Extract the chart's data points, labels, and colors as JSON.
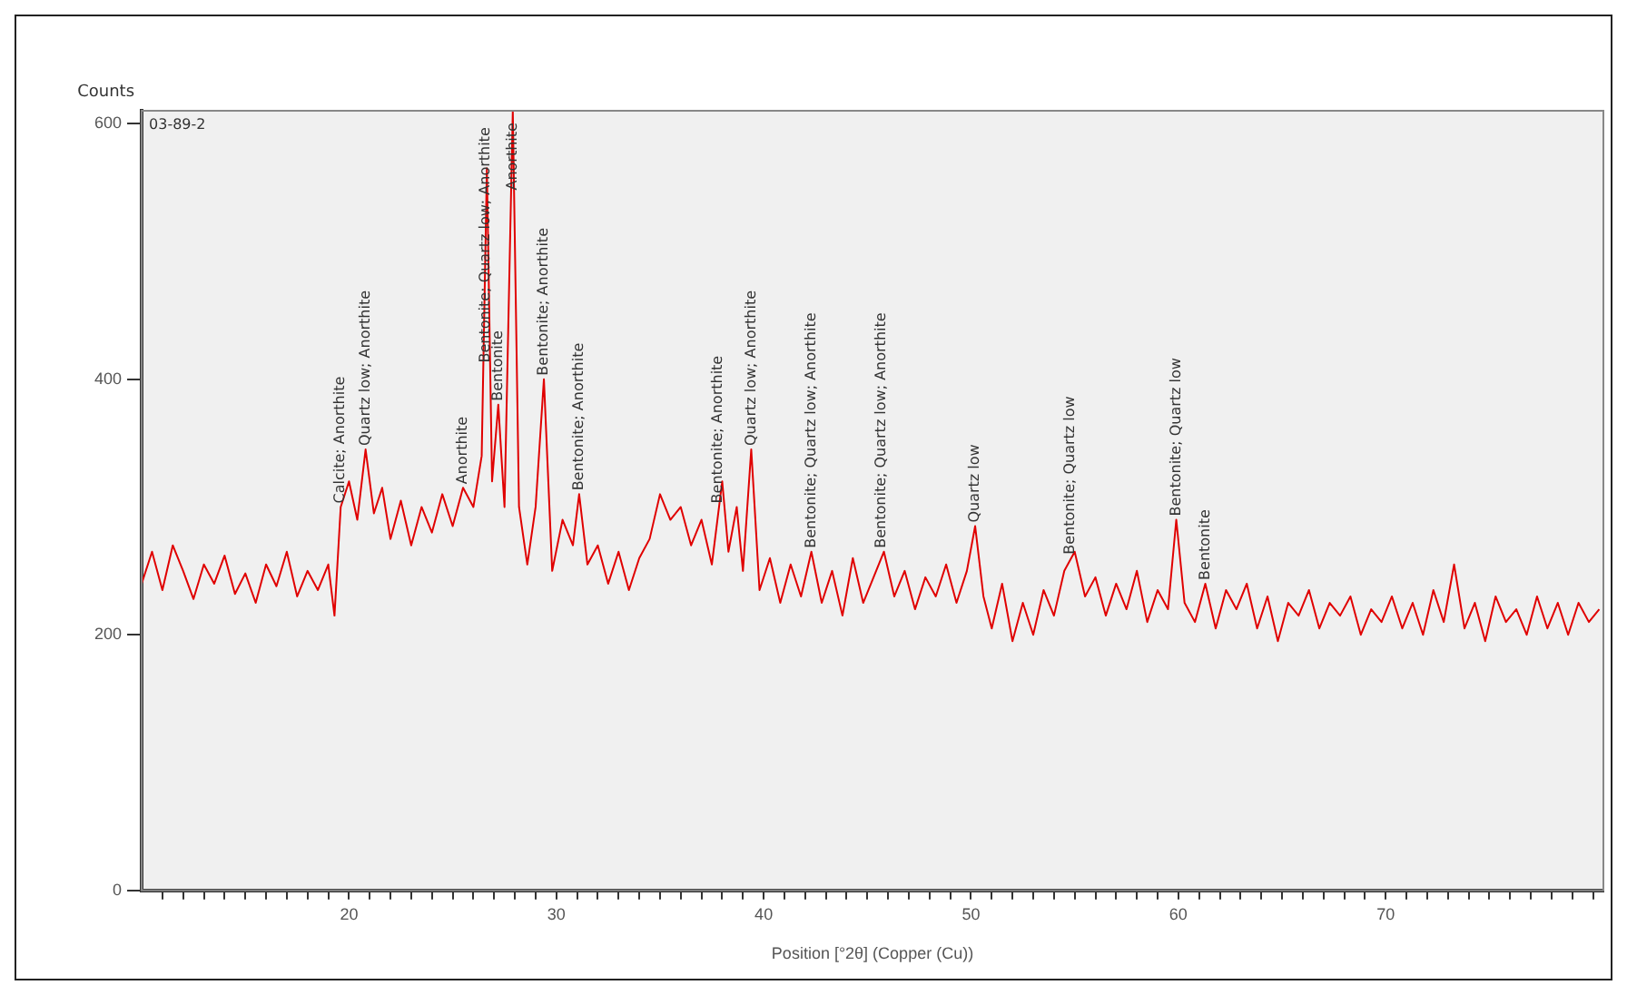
{
  "chart_data": {
    "type": "line",
    "title": "03-89-2",
    "ylabel": "Counts",
    "xlabel": "Position [°2θ] (Copper (Cu))",
    "x": [
      10,
      10.5,
      11,
      11.5,
      12,
      12.5,
      13,
      13.5,
      14,
      14.5,
      15,
      15.5,
      16,
      16.5,
      17,
      17.5,
      18,
      18.5,
      19,
      19.3,
      19.6,
      20,
      20.4,
      20.8,
      21.2,
      21.6,
      22,
      22.5,
      23,
      23.5,
      24,
      24.5,
      25,
      25.5,
      26,
      26.4,
      26.65,
      26.9,
      27.2,
      27.5,
      27.9,
      28.2,
      28.6,
      29,
      29.4,
      29.8,
      30.3,
      30.8,
      31.1,
      31.5,
      32,
      32.5,
      33,
      33.5,
      34,
      34.5,
      35,
      35.5,
      36,
      36.5,
      37,
      37.5,
      38,
      38.3,
      38.7,
      39,
      39.4,
      39.8,
      40.3,
      40.8,
      41.3,
      41.8,
      42.3,
      42.8,
      43.3,
      43.8,
      44.3,
      44.8,
      45.3,
      45.8,
      46.3,
      46.8,
      47.3,
      47.8,
      48.3,
      48.8,
      49.3,
      49.8,
      50.2,
      50.6,
      51,
      51.5,
      52,
      52.5,
      53,
      53.5,
      54,
      54.5,
      55,
      55.5,
      56,
      56.5,
      57,
      57.5,
      58,
      58.5,
      59,
      59.5,
      59.9,
      60.3,
      60.8,
      61.3,
      61.8,
      62.3,
      62.8,
      63.3,
      63.8,
      64.3,
      64.8,
      65.3,
      65.8,
      66.3,
      66.8,
      67.3,
      67.8,
      68.3,
      68.8,
      69.3,
      69.8,
      70.3,
      70.8,
      71.3,
      71.8,
      72.3,
      72.8,
      73.3,
      73.8,
      74.3,
      74.8,
      75.3,
      75.8,
      76.3,
      76.8,
      77.3,
      77.8,
      78.3,
      78.8,
      79.3,
      79.8,
      80.3
    ],
    "series": [
      {
        "color": "#e00000",
        "values": [
          240,
          265,
          235,
          270,
          250,
          228,
          255,
          240,
          262,
          232,
          248,
          225,
          255,
          238,
          265,
          230,
          250,
          235,
          255,
          215,
          300,
          320,
          290,
          345,
          295,
          315,
          275,
          305,
          270,
          300,
          280,
          310,
          285,
          315,
          300,
          340,
          565,
          320,
          380,
          300,
          610,
          300,
          255,
          300,
          400,
          250,
          290,
          270,
          310,
          255,
          270,
          240,
          265,
          235,
          260,
          275,
          310,
          290,
          300,
          270,
          290,
          255,
          320,
          265,
          300,
          250,
          345,
          235,
          260,
          225,
          255,
          230,
          265,
          225,
          250,
          215,
          260,
          225,
          245,
          265,
          230,
          250,
          220,
          245,
          230,
          255,
          225,
          250,
          285,
          230,
          205,
          240,
          195,
          225,
          200,
          235,
          215,
          250,
          265,
          230,
          245,
          215,
          240,
          220,
          250,
          210,
          235,
          220,
          290,
          225,
          210,
          240,
          205,
          235,
          220,
          240,
          205,
          230,
          195,
          225,
          215,
          235,
          205,
          225,
          215,
          230,
          200,
          220,
          210,
          230,
          205,
          225,
          200,
          235,
          210,
          255,
          205,
          225,
          195,
          230,
          210,
          220,
          200,
          230,
          205,
          225,
          200,
          225,
          210,
          220
        ]
      }
    ],
    "xlim": [
      10,
      80.5
    ],
    "ylim": [
      0,
      610
    ],
    "xticks": [
      {
        "value": 11,
        "label": null
      },
      {
        "value": 12,
        "label": null
      },
      {
        "value": 13,
        "label": null
      },
      {
        "value": 14,
        "label": null
      },
      {
        "value": 15,
        "label": null
      },
      {
        "value": 16,
        "label": null
      },
      {
        "value": 17,
        "label": null
      },
      {
        "value": 18,
        "label": null
      },
      {
        "value": 19,
        "label": null
      },
      20,
      {
        "value": 21,
        "label": null
      },
      {
        "value": 22,
        "label": null
      },
      {
        "value": 23,
        "label": null
      },
      {
        "value": 24,
        "label": null
      },
      {
        "value": 25,
        "label": null
      },
      {
        "value": 26,
        "label": null
      },
      {
        "value": 27,
        "label": null
      },
      {
        "value": 28,
        "label": null
      },
      {
        "value": 29,
        "label": null
      },
      30,
      {
        "value": 31,
        "label": null
      },
      {
        "value": 32,
        "label": null
      },
      {
        "value": 33,
        "label": null
      },
      {
        "value": 34,
        "label": null
      },
      {
        "value": 35,
        "label": null
      },
      {
        "value": 36,
        "label": null
      },
      {
        "value": 37,
        "label": null
      },
      {
        "value": 38,
        "label": null
      },
      {
        "value": 39,
        "label": null
      },
      40,
      {
        "value": 41,
        "label": null
      },
      {
        "value": 42,
        "label": null
      },
      {
        "value": 43,
        "label": null
      },
      {
        "value": 44,
        "label": null
      },
      {
        "value": 45,
        "label": null
      },
      {
        "value": 46,
        "label": null
      },
      {
        "value": 47,
        "label": null
      },
      {
        "value": 48,
        "label": null
      },
      {
        "value": 49,
        "label": null
      },
      50,
      {
        "value": 51,
        "label": null
      },
      {
        "value": 52,
        "label": null
      },
      {
        "value": 53,
        "label": null
      },
      {
        "value": 54,
        "label": null
      },
      {
        "value": 55,
        "label": null
      },
      {
        "value": 56,
        "label": null
      },
      {
        "value": 57,
        "label": null
      },
      {
        "value": 58,
        "label": null
      },
      {
        "value": 59,
        "label": null
      },
      60,
      {
        "value": 61,
        "label": null
      },
      {
        "value": 62,
        "label": null
      },
      {
        "value": 63,
        "label": null
      },
      {
        "value": 64,
        "label": null
      },
      {
        "value": 65,
        "label": null
      },
      {
        "value": 66,
        "label": null
      },
      {
        "value": 67,
        "label": null
      },
      {
        "value": 68,
        "label": null
      },
      {
        "value": 69,
        "label": null
      },
      70,
      {
        "value": 71,
        "label": null
      },
      {
        "value": 72,
        "label": null
      },
      {
        "value": 73,
        "label": null
      },
      {
        "value": 74,
        "label": null
      },
      {
        "value": 75,
        "label": null
      },
      {
        "value": 76,
        "label": null
      },
      {
        "value": 77,
        "label": null
      },
      {
        "value": 78,
        "label": null
      },
      {
        "value": 79,
        "label": null
      },
      {
        "value": 80,
        "label": null
      }
    ],
    "yticks": [
      0,
      200,
      400,
      600
    ],
    "grid": false,
    "legend": false,
    "marker": "none",
    "line_style": "solid",
    "annotations": [
      {
        "text": "Calcite; Anorthite",
        "x": 19.6,
        "y": 300
      },
      {
        "text": "Quartz low; Anorthite",
        "x": 20.8,
        "y": 345
      },
      {
        "text": "Bentonite; Quartz low; Anorthite",
        "x": 26.6,
        "y": 410
      },
      {
        "text": "Anorthite",
        "x": 25.5,
        "y": 315
      },
      {
        "text": "Bentonite",
        "x": 27.2,
        "y": 380
      },
      {
        "text": "Anorthite",
        "x": 27.9,
        "y": 545
      },
      {
        "text": "Bentonite; Anorthite",
        "x": 29.4,
        "y": 400
      },
      {
        "text": "Bentonite; Anorthite",
        "x": 31.1,
        "y": 310
      },
      {
        "text": "Bentonite; Anorthite",
        "x": 37.8,
        "y": 300
      },
      {
        "text": "Quartz low; Anorthite",
        "x": 39.4,
        "y": 345
      },
      {
        "text": "Bentonite; Quartz low; Anorthite",
        "x": 42.3,
        "y": 265
      },
      {
        "text": "Bentonite; Quartz low; Anorthite",
        "x": 45.7,
        "y": 265
      },
      {
        "text": "Quartz low",
        "x": 50.2,
        "y": 285
      },
      {
        "text": "Bentonite; Quartz low",
        "x": 54.8,
        "y": 260
      },
      {
        "text": "Bentonite; Quartz low",
        "x": 59.9,
        "y": 290
      },
      {
        "text": "Bentonite",
        "x": 61.3,
        "y": 240
      }
    ]
  }
}
